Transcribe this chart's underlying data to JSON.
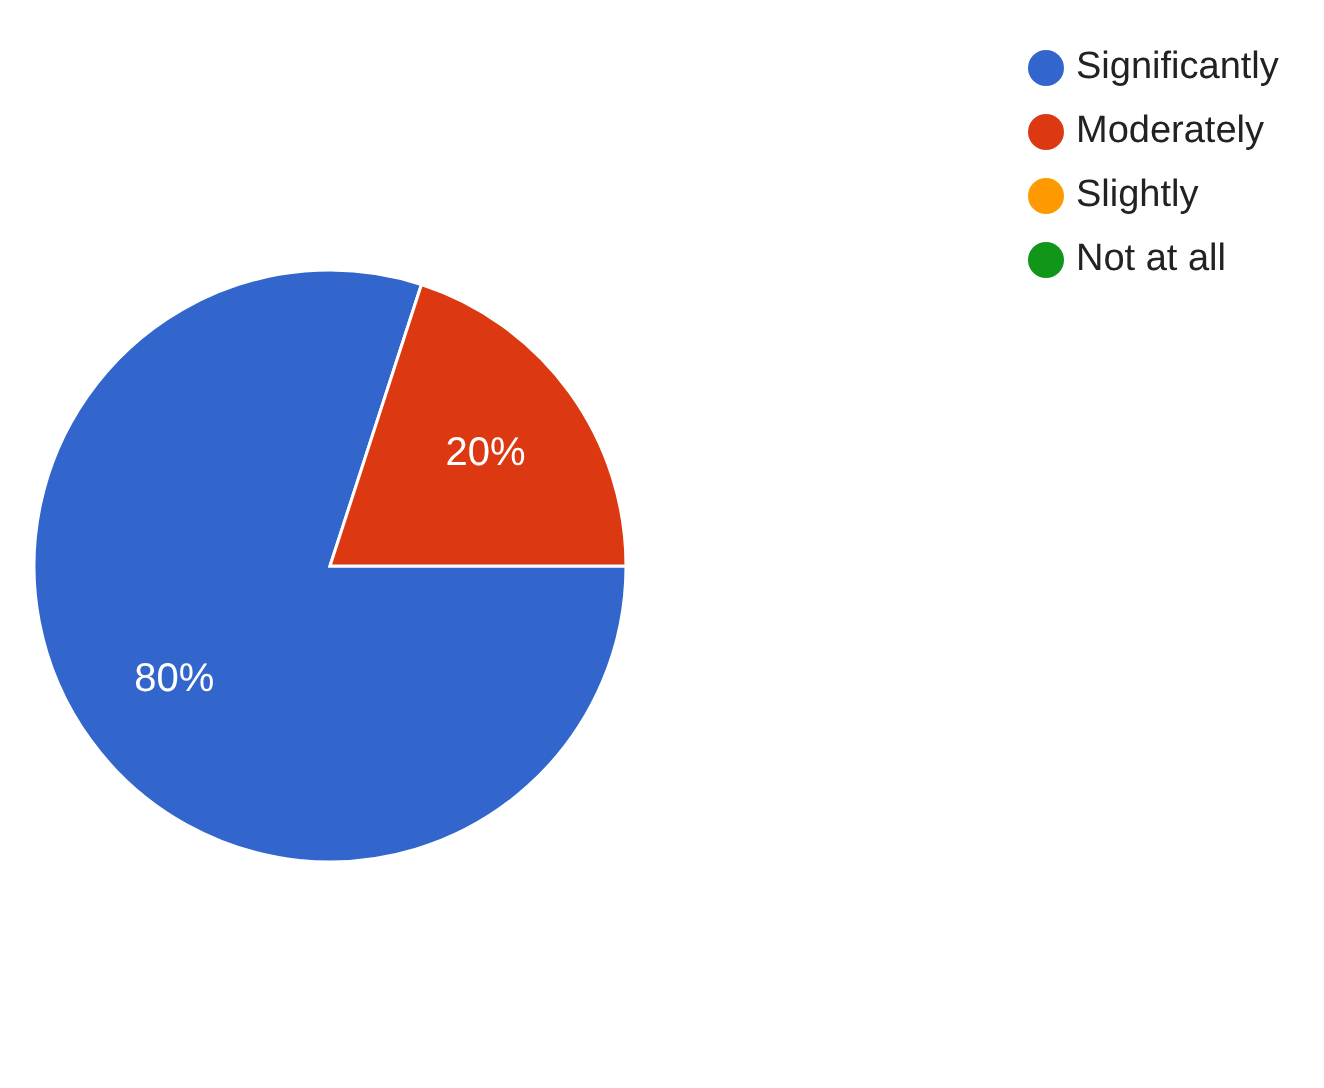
{
  "chart_data": {
    "type": "pie",
    "categories": [
      "Significantly",
      "Moderately",
      "Slightly",
      "Not at all"
    ],
    "values": [
      80,
      20,
      0,
      0
    ],
    "colors": [
      "#3366cc",
      "#dc3912",
      "#ff9900",
      "#109618"
    ],
    "value_labels": [
      "80%",
      "20%",
      null,
      null
    ],
    "legend": "top right"
  }
}
